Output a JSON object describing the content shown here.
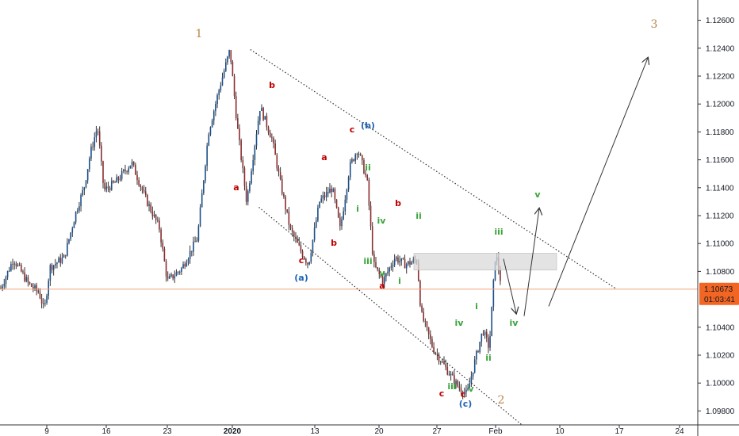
{
  "chart_data": {
    "type": "candlestick",
    "instrument": "EUR/USD",
    "y_axis": {
      "ticks": [
        "1.12600",
        "1.12400",
        "1.12200",
        "1.12000",
        "1.11800",
        "1.11600",
        "1.11400",
        "1.11200",
        "1.11000",
        "1.10800",
        "1.10400",
        "1.10200",
        "1.10000",
        "1.09800"
      ],
      "ylim": [
        1.097,
        1.127
      ]
    },
    "x_axis": {
      "ticks": [
        "9",
        "16",
        "23",
        "2020",
        "6",
        "13",
        "20",
        "27",
        "Feb",
        "10",
        "17",
        "24"
      ],
      "bold_tick": "2020"
    },
    "price_label": {
      "value": "1.10673",
      "price": 1.10673,
      "countdown": "01:03:41"
    },
    "price_line": 1.10673,
    "anchors": {
      "start_low": 1.1068,
      "wave1_high": 1.1239,
      "wave2_low": 1.0992,
      "last_high": 1.1094,
      "last_close": 1.1068
    },
    "resistance_zone": {
      "price_top": 1.1093,
      "price_bottom": 1.1081
    },
    "channel": {
      "upper": {
        "from": {
          "date": "2020-01-02",
          "price": 1.1239
        },
        "to": {
          "date": "2020-02-14",
          "price": 1.1068
        }
      },
      "lower": {
        "from": {
          "date": "2020-01-03",
          "price": 1.1126
        },
        "to": {
          "date": "2020-02-03",
          "price": 1.097
        }
      }
    },
    "projection": [
      {
        "label": "iv",
        "price": 1.105
      },
      {
        "label": "v",
        "price": 1.1125
      },
      {
        "label": "wave-3",
        "price": 1.1233
      }
    ],
    "wave_labels": [
      {
        "text": "1",
        "kind": "degree"
      },
      {
        "text": "2",
        "kind": "degree"
      },
      {
        "text": "3",
        "kind": "degree"
      },
      {
        "text": "(a)",
        "kind": "blue"
      },
      {
        "text": "(b)",
        "kind": "blue"
      },
      {
        "text": "(c)",
        "kind": "blue"
      },
      {
        "text": "a",
        "kind": "red"
      },
      {
        "text": "b",
        "kind": "red"
      },
      {
        "text": "c",
        "kind": "red"
      },
      {
        "text": "a",
        "kind": "red"
      },
      {
        "text": "b",
        "kind": "red"
      },
      {
        "text": "c",
        "kind": "red"
      },
      {
        "text": "a",
        "kind": "red"
      },
      {
        "text": "b",
        "kind": "red"
      },
      {
        "text": "c",
        "kind": "red"
      },
      {
        "text": "c",
        "kind": "red"
      },
      {
        "text": "i",
        "kind": "green"
      },
      {
        "text": "ii",
        "kind": "green"
      },
      {
        "text": "iii",
        "kind": "green"
      },
      {
        "text": "iv",
        "kind": "green"
      },
      {
        "text": "v",
        "kind": "green"
      },
      {
        "text": "i",
        "kind": "green"
      },
      {
        "text": "ii",
        "kind": "green"
      },
      {
        "text": "iii",
        "kind": "green"
      },
      {
        "text": "iv",
        "kind": "green"
      },
      {
        "text": "v",
        "kind": "green"
      },
      {
        "text": "i",
        "kind": "green"
      },
      {
        "text": "ii",
        "kind": "green"
      },
      {
        "text": "iii",
        "kind": "green"
      },
      {
        "text": "iv",
        "kind": "green"
      },
      {
        "text": "v",
        "kind": "green"
      }
    ],
    "colors": {
      "up": "#1a4f8a",
      "down": "#8b2e2e",
      "wick": "#333333",
      "axis_text": "#131722",
      "price_line": "#f2a07b",
      "price_label_bg": "#f26522",
      "degree": "#b8864a",
      "blue_label": "#1f63b5",
      "red_label": "#c00000",
      "green_label": "#3aa33a",
      "zone": "#d9d9d9"
    }
  }
}
